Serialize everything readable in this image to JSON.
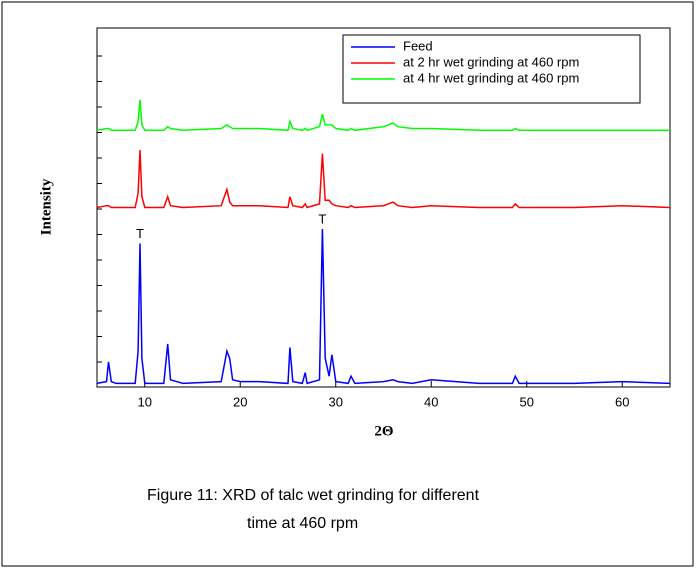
{
  "chart_data": {
    "type": "line",
    "xlabel": "2Θ",
    "ylabel": "Intensity",
    "caption": [
      "Figure 11: XRD of talc wet grinding for different",
      "time at 460 rpm"
    ],
    "x": [
      5,
      6,
      6.2,
      6.5,
      7,
      9,
      9.3,
      9.5,
      9.7,
      10,
      12,
      12.4,
      12.7,
      14,
      18,
      18.6,
      18.9,
      19.2,
      20,
      22,
      25,
      25.2,
      25.5,
      26.5,
      26.8,
      27,
      28.3,
      28.6,
      28.9,
      29.3,
      29.6,
      30,
      31.3,
      31.6,
      32,
      35,
      36,
      36.5,
      38,
      40,
      45,
      48.5,
      48.8,
      49.2,
      55,
      60,
      65
    ],
    "series": [
      {
        "name": "Feed",
        "color": "#0000ff",
        "values": [
          1,
          1.5,
          7,
          1.5,
          1,
          1,
          10,
          40,
          8,
          1,
          1,
          12,
          2,
          1,
          1.5,
          10,
          8,
          2,
          1.5,
          1.5,
          1,
          11,
          1.5,
          1,
          4,
          1,
          2,
          44,
          8,
          3,
          9,
          1.5,
          1,
          3,
          1,
          1.5,
          2,
          1.5,
          1,
          2,
          1,
          1,
          3,
          1,
          1,
          1.5,
          1
        ]
      },
      {
        "name": "at 2 hr wet grinding at 460 rpm",
        "color": "#ff0000",
        "values": [
          50,
          50.5,
          50.5,
          50,
          50,
          50,
          54,
          66,
          53,
          50,
          50,
          53,
          50.5,
          50,
          50.5,
          55,
          51.5,
          50.5,
          50.5,
          50.5,
          50,
          53,
          50.5,
          50,
          51,
          50,
          51,
          65,
          52,
          52,
          51,
          50.5,
          50,
          50.5,
          50,
          50.5,
          51.5,
          50.5,
          50,
          50.5,
          50,
          50,
          51,
          50,
          50,
          50.5,
          50
        ]
      },
      {
        "name": "at 4 hr wet grinding at 460 rpm",
        "color": "#00ff00",
        "values": [
          71.5,
          72,
          72,
          71.5,
          71.5,
          71.5,
          74,
          80,
          73,
          71.5,
          71.5,
          72.5,
          72,
          71.5,
          72,
          73,
          72.5,
          72,
          72,
          72,
          71.5,
          74,
          72,
          71.5,
          72,
          71.5,
          72.5,
          76,
          73,
          73,
          73,
          72,
          71.5,
          72,
          71.5,
          72.5,
          73.5,
          72.5,
          72,
          72,
          71.5,
          71.5,
          72,
          71.5,
          71.5,
          71.5,
          71.5
        ]
      }
    ],
    "annotations": [
      {
        "text": "T",
        "x": 9.5
      },
      {
        "text": "T",
        "x": 28.6
      }
    ],
    "xlim": [
      5,
      65
    ],
    "xticks": [
      10,
      20,
      30,
      40,
      50,
      60
    ],
    "ylim": [
      0,
      100
    ],
    "legend": "upper right"
  }
}
